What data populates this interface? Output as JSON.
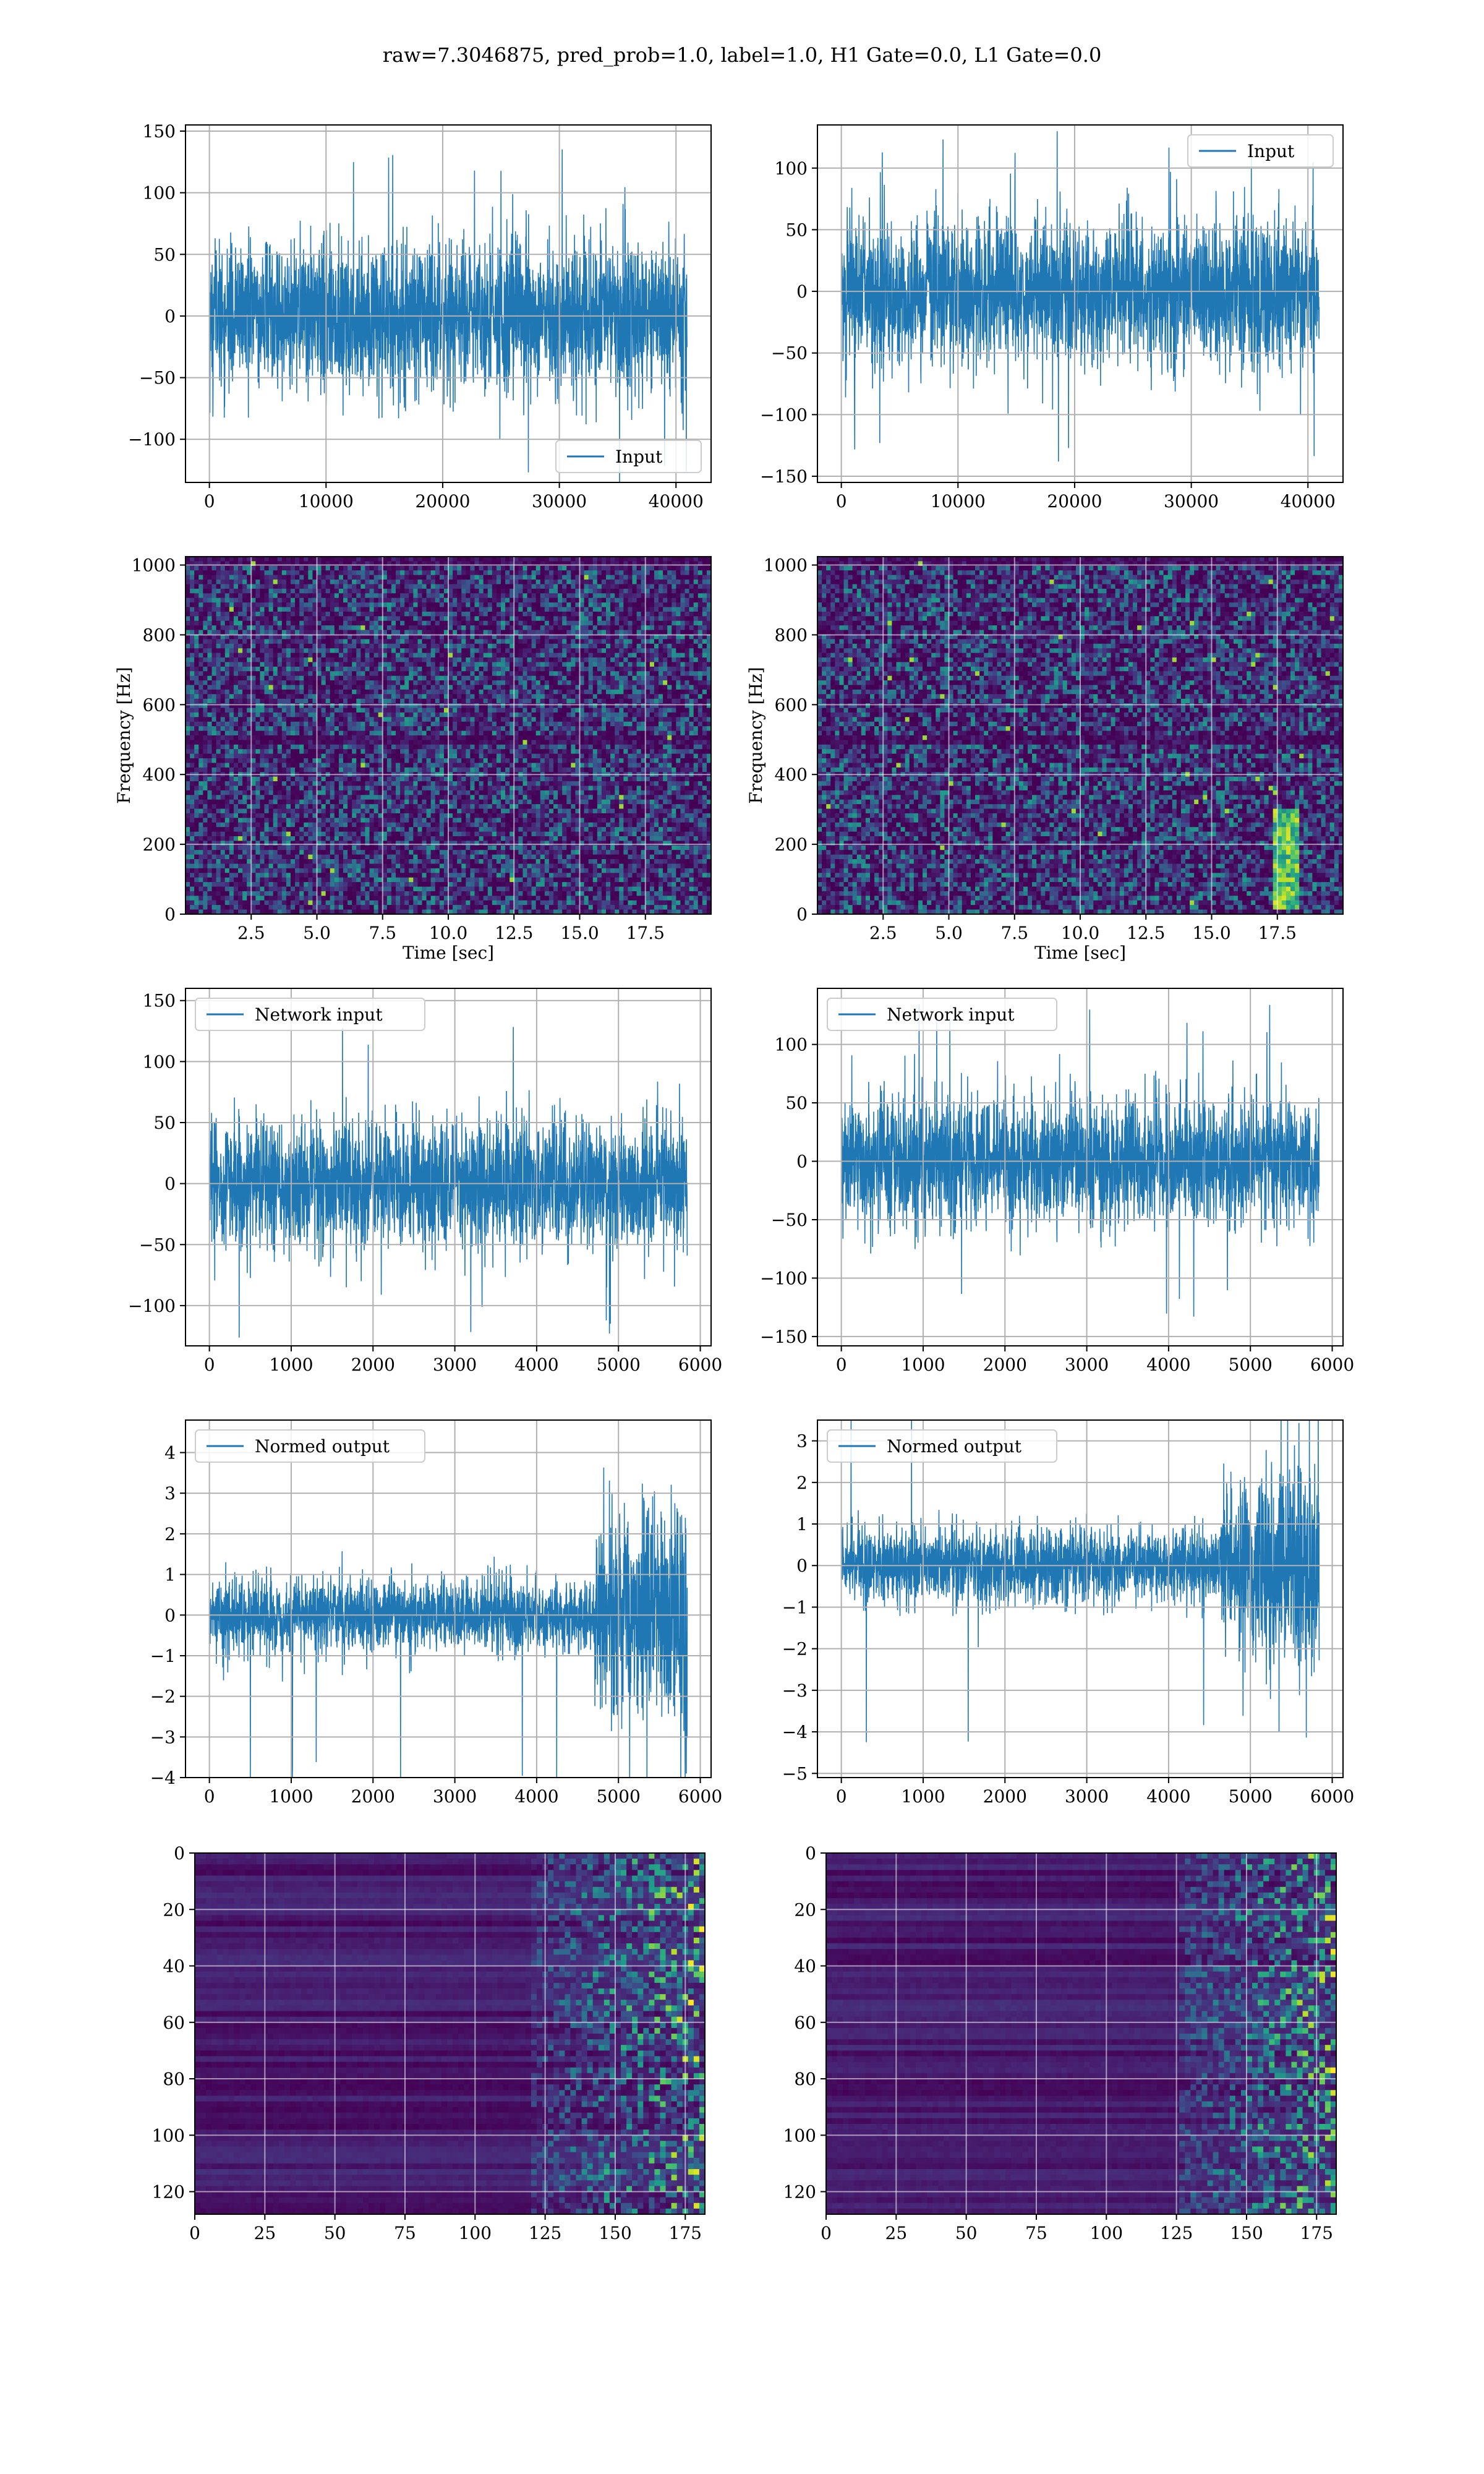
{
  "figure": {
    "suptitle": "raw=7.3046875, pred_prob=1.0, label=1.0, H1 Gate=0.0, L1 Gate=0.0"
  },
  "colors": {
    "line": "#1f77b4",
    "grid": "#b0b0b0",
    "viridis_low": "#440154",
    "viridis_mid": "#21918c",
    "viridis_high": "#fde725"
  },
  "chart_data": [
    {
      "id": "input-h1",
      "type": "line",
      "series": [
        {
          "name": "Input"
        }
      ],
      "legend": "lower-right",
      "x_range": [
        0,
        40960
      ],
      "ylim": [
        -135,
        155
      ],
      "signal": "noise",
      "amp": 30,
      "spike": 140,
      "xticks": [
        0,
        10000,
        20000,
        30000,
        40000
      ],
      "xtick_labels": [
        "0",
        "10000",
        "20000",
        "30000",
        "40000"
      ],
      "yticks": [
        -100,
        -50,
        0,
        50,
        100,
        150
      ],
      "ytick_labels": [
        "−100",
        "−50",
        "0",
        "50",
        "100",
        "150"
      ],
      "xlabel": "",
      "ylabel": "",
      "grid": true
    },
    {
      "id": "input-l1",
      "type": "line",
      "series": [
        {
          "name": "Input"
        }
      ],
      "legend": "upper-right",
      "x_range": [
        0,
        40960
      ],
      "ylim": [
        -155,
        135
      ],
      "signal": "noise",
      "amp": 30,
      "spike": 140,
      "xticks": [
        0,
        10000,
        20000,
        30000,
        40000
      ],
      "xtick_labels": [
        "0",
        "10000",
        "20000",
        "30000",
        "40000"
      ],
      "yticks": [
        -150,
        -100,
        -50,
        0,
        50,
        100
      ],
      "ytick_labels": [
        "−150",
        "−100",
        "−50",
        "0",
        "50",
        "100"
      ],
      "xlabel": "",
      "ylabel": "",
      "grid": true
    },
    {
      "id": "spec-h1",
      "type": "heatmap",
      "xlabel": "Time [sec]",
      "ylabel": "Frequency [Hz]",
      "xlim": [
        0,
        20
      ],
      "ylim": [
        0,
        1024
      ],
      "colormap": "viridis",
      "bright_feature": "none",
      "xticks": [
        2.5,
        5.0,
        7.5,
        10.0,
        12.5,
        15.0,
        17.5
      ],
      "xtick_labels": [
        "2.5",
        "5.0",
        "7.5",
        "10.0",
        "12.5",
        "15.0",
        "17.5"
      ],
      "yticks": [
        0,
        200,
        400,
        600,
        800,
        1000
      ],
      "ytick_labels": [
        "0",
        "200",
        "400",
        "600",
        "800",
        "1000"
      ],
      "grid": true
    },
    {
      "id": "spec-l1",
      "type": "heatmap",
      "xlabel": "Time [sec]",
      "ylabel": "Frequency [Hz]",
      "xlim": [
        0,
        20
      ],
      "ylim": [
        0,
        1024
      ],
      "colormap": "viridis",
      "bright_feature": "chirp-at-18s",
      "xticks": [
        2.5,
        5.0,
        7.5,
        10.0,
        12.5,
        15.0,
        17.5
      ],
      "xtick_labels": [
        "2.5",
        "5.0",
        "7.5",
        "10.0",
        "12.5",
        "15.0",
        "17.5"
      ],
      "yticks": [
        0,
        200,
        400,
        600,
        800,
        1000
      ],
      "ytick_labels": [
        "0",
        "200",
        "400",
        "600",
        "800",
        "1000"
      ],
      "grid": true
    },
    {
      "id": "net-h1",
      "type": "line",
      "series": [
        {
          "name": "Network input"
        }
      ],
      "legend": "upper-left",
      "x_range": [
        0,
        5840
      ],
      "ylim": [
        -133,
        160
      ],
      "signal": "noise",
      "amp": 27,
      "spike": 140,
      "xticks": [
        0,
        1000,
        2000,
        3000,
        4000,
        5000,
        6000
      ],
      "xtick_labels": [
        "0",
        "1000",
        "2000",
        "3000",
        "4000",
        "5000",
        "6000"
      ],
      "yticks": [
        -100,
        -50,
        0,
        50,
        100,
        150
      ],
      "ytick_labels": [
        "−100",
        "−50",
        "0",
        "50",
        "100",
        "150"
      ],
      "xlabel": "",
      "ylabel": "",
      "grid": true
    },
    {
      "id": "net-l1",
      "type": "line",
      "series": [
        {
          "name": "Network input"
        }
      ],
      "legend": "upper-left",
      "x_range": [
        0,
        5840
      ],
      "ylim": [
        -158,
        148
      ],
      "signal": "noise",
      "amp": 27,
      "spike": 135,
      "xticks": [
        0,
        1000,
        2000,
        3000,
        4000,
        5000,
        6000
      ],
      "xtick_labels": [
        "0",
        "1000",
        "2000",
        "3000",
        "4000",
        "5000",
        "6000"
      ],
      "yticks": [
        -150,
        -100,
        -50,
        0,
        50,
        100
      ],
      "ytick_labels": [
        "−150",
        "−100",
        "−50",
        "0",
        "50",
        "100"
      ],
      "xlabel": "",
      "ylabel": "",
      "grid": true
    },
    {
      "id": "norm-h1",
      "type": "line",
      "series": [
        {
          "name": "Normed output"
        }
      ],
      "legend": "upper-left",
      "x_range": [
        0,
        5840
      ],
      "ylim": [
        -4,
        4.8
      ],
      "signal": "burst",
      "amp": 0.45,
      "burst_start": 4700,
      "burst_amp": 1.3,
      "spike": 4.5,
      "xticks": [
        0,
        1000,
        2000,
        3000,
        4000,
        5000,
        6000
      ],
      "xtick_labels": [
        "0",
        "1000",
        "2000",
        "3000",
        "4000",
        "5000",
        "6000"
      ],
      "yticks": [
        -4,
        -3,
        -2,
        -1,
        0,
        1,
        2,
        3,
        4
      ],
      "ytick_labels": [
        "−4",
        "−3",
        "−2",
        "−1",
        "0",
        "1",
        "2",
        "3",
        "4"
      ],
      "xlabel": "",
      "ylabel": "",
      "grid": true
    },
    {
      "id": "norm-l1",
      "type": "line",
      "series": [
        {
          "name": "Normed output"
        }
      ],
      "legend": "upper-left",
      "x_range": [
        0,
        5840
      ],
      "ylim": [
        -5.1,
        3.5
      ],
      "signal": "burst",
      "amp": 0.45,
      "burst_start": 4650,
      "burst_amp": 1.2,
      "spike": 4.6,
      "xticks": [
        0,
        1000,
        2000,
        3000,
        4000,
        5000,
        6000
      ],
      "xtick_labels": [
        "0",
        "1000",
        "2000",
        "3000",
        "4000",
        "5000",
        "6000"
      ],
      "yticks": [
        -5,
        -4,
        -3,
        -2,
        -1,
        0,
        1,
        2,
        3
      ],
      "ytick_labels": [
        "−5",
        "−4",
        "−3",
        "−2",
        "−1",
        "0",
        "1",
        "2",
        "3"
      ],
      "xlabel": "",
      "ylabel": "",
      "grid": true
    },
    {
      "id": "feat-h1",
      "type": "heatmap",
      "xlabel": "",
      "ylabel": "",
      "xlim": [
        0,
        182
      ],
      "ylim": [
        128,
        0
      ],
      "colormap": "viridis",
      "activation_start": 120,
      "xticks": [
        0,
        25,
        50,
        75,
        100,
        125,
        150,
        175
      ],
      "xtick_labels": [
        "0",
        "25",
        "50",
        "75",
        "100",
        "125",
        "150",
        "175"
      ],
      "yticks": [
        0,
        20,
        40,
        60,
        80,
        100,
        120
      ],
      "ytick_labels": [
        "0",
        "20",
        "40",
        "60",
        "80",
        "100",
        "120"
      ],
      "grid": true
    },
    {
      "id": "feat-l1",
      "type": "heatmap",
      "xlabel": "",
      "ylabel": "",
      "xlim": [
        0,
        182
      ],
      "ylim": [
        128,
        0
      ],
      "colormap": "viridis",
      "activation_start": 125,
      "xticks": [
        0,
        25,
        50,
        75,
        100,
        125,
        150,
        175
      ],
      "xtick_labels": [
        "0",
        "25",
        "50",
        "75",
        "100",
        "125",
        "150",
        "175"
      ],
      "yticks": [
        0,
        20,
        40,
        60,
        80,
        100,
        120
      ],
      "ytick_labels": [
        "0",
        "20",
        "40",
        "60",
        "80",
        "100",
        "120"
      ],
      "grid": true
    }
  ]
}
